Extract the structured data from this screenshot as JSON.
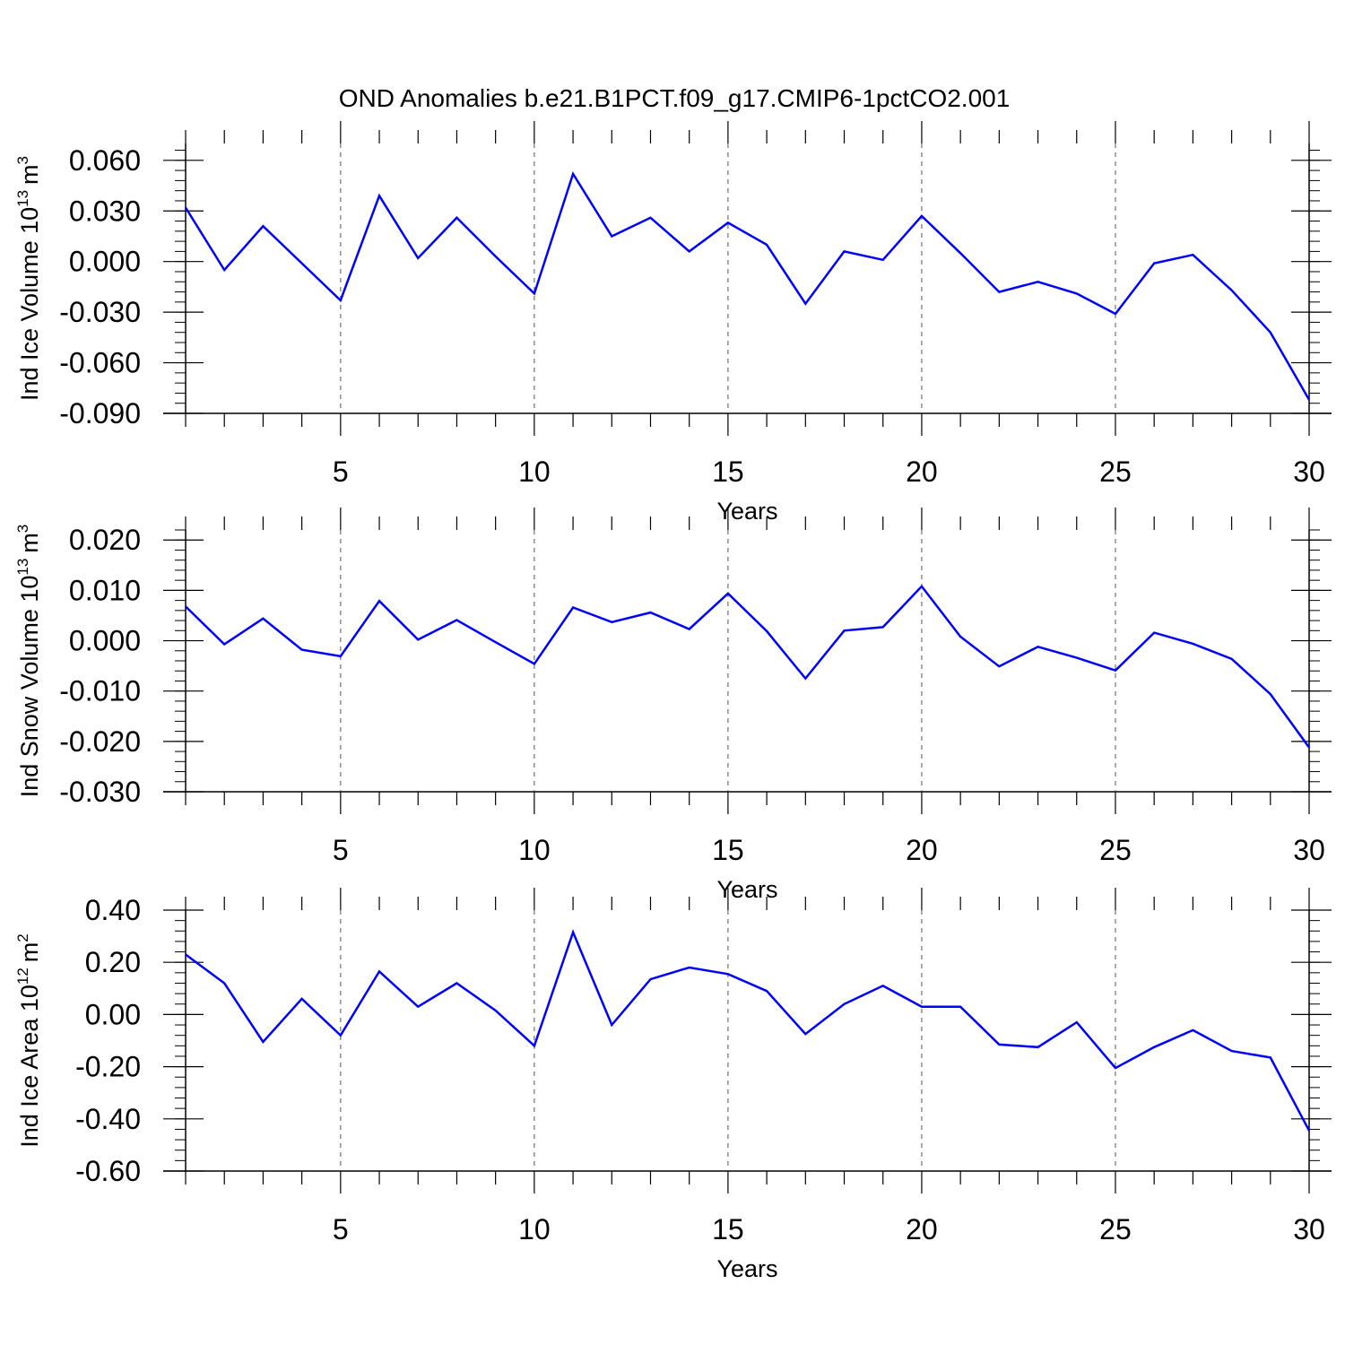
{
  "title": "OND Anomalies b.e21.B1PCT.f09_g17.CMIP6-1pctCO2.001",
  "line_color": "#0000ff",
  "chart_data": [
    {
      "type": "line",
      "ylabel": {
        "text": "Ind Ice Volume 10",
        "exp": "13",
        "unit": "m",
        "unit_exp": "3"
      },
      "xlabel": "Years",
      "xlim": [
        1,
        30
      ],
      "ylim": [
        -0.09,
        0.07
      ],
      "x_ticks": [
        5,
        10,
        15,
        20,
        25,
        30
      ],
      "y_ticks": [
        -0.09,
        -0.06,
        -0.03,
        0.0,
        0.03,
        0.06
      ],
      "y_tick_labels": [
        "-0.090",
        "-0.060",
        "-0.030",
        "0.000",
        "0.030",
        "0.060"
      ],
      "grid": "vertical dashed at labeled x ticks",
      "x": [
        1,
        2,
        3,
        4,
        5,
        6,
        7,
        8,
        9,
        10,
        11,
        12,
        13,
        14,
        15,
        16,
        17,
        18,
        19,
        20,
        21,
        22,
        23,
        24,
        25,
        26,
        27,
        28,
        29,
        30
      ],
      "values": [
        0.032,
        -0.005,
        0.021,
        -0.001,
        -0.023,
        0.039,
        0.002,
        0.026,
        0.003,
        -0.019,
        0.052,
        0.015,
        0.026,
        0.006,
        0.023,
        0.01,
        -0.025,
        0.006,
        0.001,
        0.027,
        0.005,
        -0.018,
        -0.012,
        -0.019,
        -0.031,
        -0.001,
        0.004,
        -0.017,
        -0.042,
        -0.082
      ]
    },
    {
      "type": "line",
      "ylabel": {
        "text": "Ind Snow Volume 10",
        "exp": "13",
        "unit": "m",
        "unit_exp": "3"
      },
      "xlabel": "Years",
      "xlim": [
        1,
        30
      ],
      "ylim": [
        -0.03,
        0.022
      ],
      "x_ticks": [
        5,
        10,
        15,
        20,
        25,
        30
      ],
      "y_ticks": [
        -0.03,
        -0.02,
        -0.01,
        0.0,
        0.01,
        0.02
      ],
      "y_tick_labels": [
        "-0.030",
        "-0.020",
        "-0.010",
        "0.000",
        "0.010",
        "0.020"
      ],
      "grid": "vertical dashed at labeled x ticks",
      "x": [
        1,
        2,
        3,
        4,
        5,
        6,
        7,
        8,
        9,
        10,
        11,
        12,
        13,
        14,
        15,
        16,
        17,
        18,
        19,
        20,
        21,
        22,
        23,
        24,
        25,
        26,
        27,
        28,
        29,
        30
      ],
      "values": [
        0.0068,
        -0.0007,
        0.0044,
        -0.0018,
        -0.0031,
        0.0079,
        0.0002,
        0.0041,
        -0.0003,
        -0.0046,
        0.0066,
        0.0037,
        0.0056,
        0.0023,
        0.0094,
        0.0019,
        -0.0075,
        0.002,
        0.0027,
        0.0108,
        0.0008,
        -0.0051,
        -0.0012,
        -0.0034,
        -0.0059,
        0.0016,
        -0.0006,
        -0.0036,
        -0.0106,
        -0.0212
      ]
    },
    {
      "type": "line",
      "ylabel": {
        "text": "Ind Ice Area 10",
        "exp": "12",
        "unit": "m",
        "unit_exp": "2"
      },
      "xlabel": "Years",
      "xlim": [
        1,
        30
      ],
      "ylim": [
        -0.6,
        0.4
      ],
      "x_ticks": [
        5,
        10,
        15,
        20,
        25,
        30
      ],
      "y_ticks": [
        -0.6,
        -0.4,
        -0.2,
        0.0,
        0.2,
        0.4
      ],
      "y_tick_labels": [
        "-0.60",
        "-0.40",
        "-0.20",
        "0.00",
        "0.20",
        "0.40"
      ],
      "grid": "vertical dashed at labeled x ticks",
      "x": [
        1,
        2,
        3,
        4,
        5,
        6,
        7,
        8,
        9,
        10,
        11,
        12,
        13,
        14,
        15,
        16,
        17,
        18,
        19,
        20,
        21,
        22,
        23,
        24,
        25,
        26,
        27,
        28,
        29,
        30
      ],
      "values": [
        0.23,
        0.12,
        -0.105,
        0.06,
        -0.08,
        0.165,
        0.03,
        0.12,
        0.015,
        -0.12,
        0.315,
        -0.04,
        0.135,
        0.18,
        0.155,
        0.09,
        -0.075,
        0.04,
        0.11,
        0.03,
        0.03,
        -0.115,
        -0.125,
        -0.03,
        -0.205,
        -0.125,
        -0.06,
        -0.14,
        -0.165,
        -0.445
      ]
    }
  ]
}
